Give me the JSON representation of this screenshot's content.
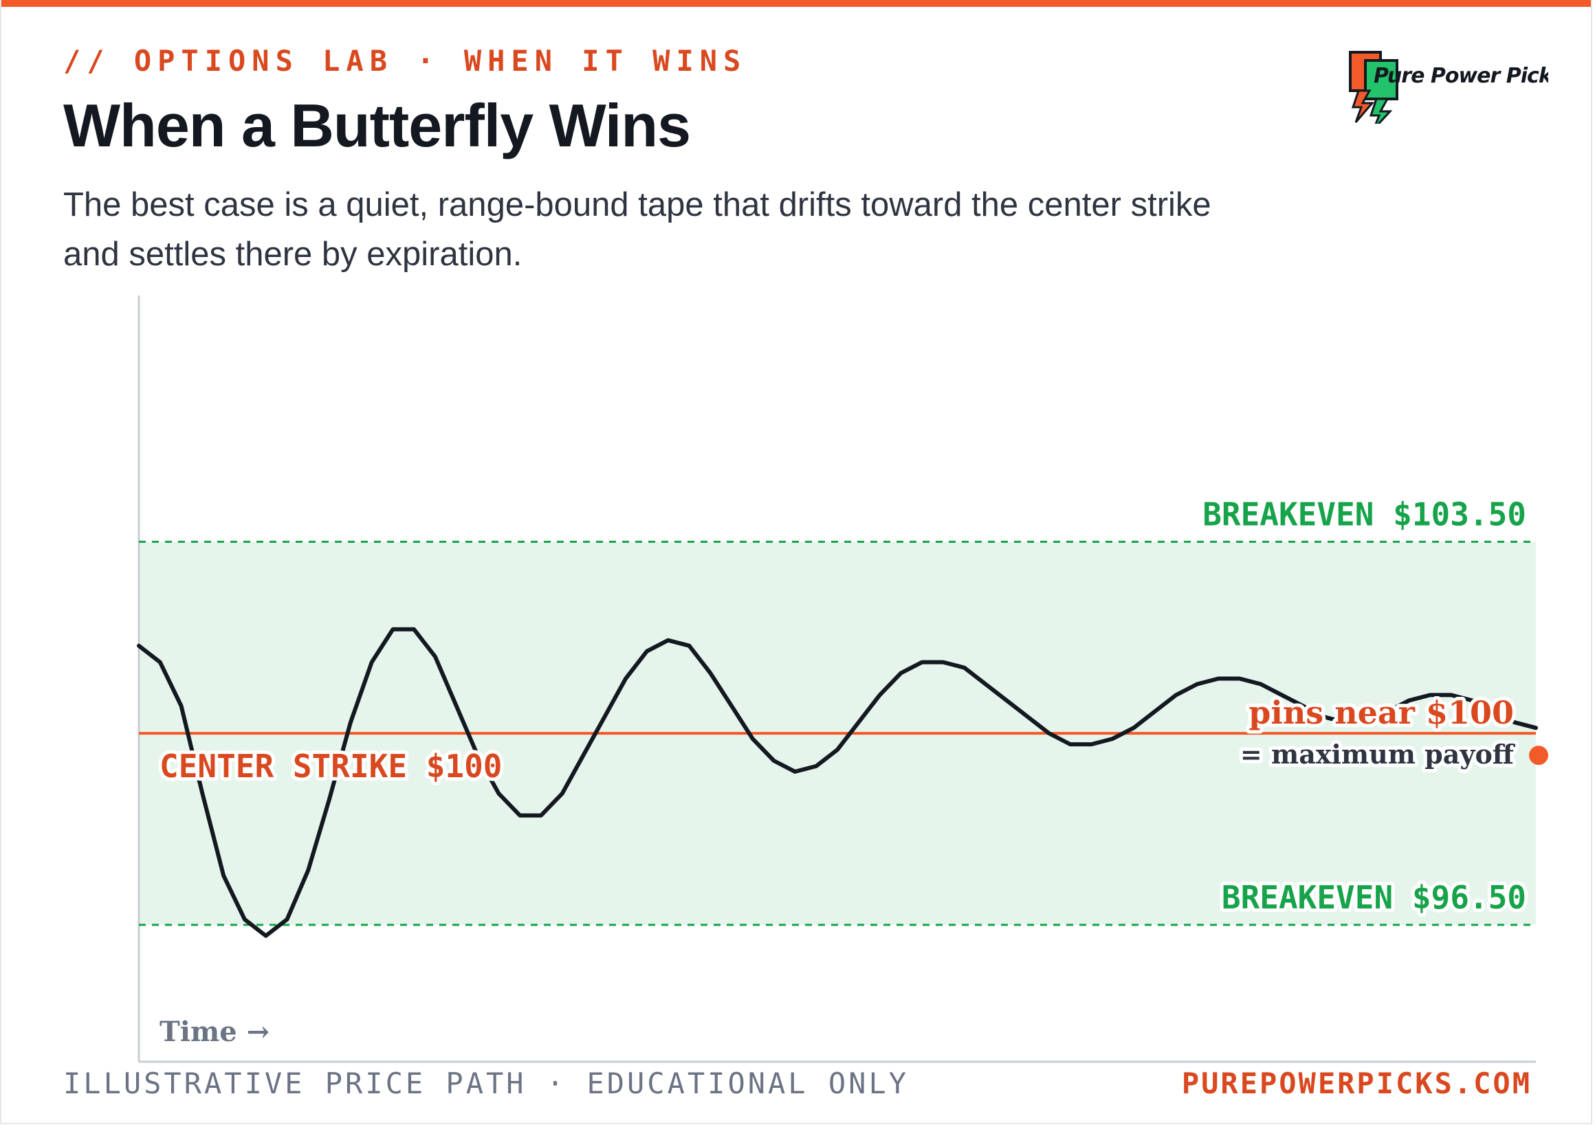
{
  "header": {
    "kicker": "// OPTIONS LAB · WHEN IT WINS",
    "title": "When a Butterfly Wins",
    "subtitle": "The best case is a quiet, range-bound tape that drifts toward the center strike and settles there by expiration."
  },
  "logo": {
    "text": "Pure Power Picks",
    "icon": "lightning-bolt-icon"
  },
  "footer": {
    "left": "ILLUSTRATIVE PRICE PATH · EDUCATIONAL ONLY",
    "right": "PUREPOWERPICKS.COM"
  },
  "colors": {
    "accent": "#f25a2a",
    "accent_text": "#d9481f",
    "green": "#16a34a",
    "band": "#e6f5ec",
    "line": "#141820"
  },
  "chart_data": {
    "type": "line",
    "xlabel": "Time →",
    "ylabel": "",
    "ylim": [
      94.0,
      108.0
    ],
    "grid": false,
    "series": [
      {
        "values": [
          101.6,
          101.3,
          100.5,
          98.9,
          97.4,
          96.6,
          96.3,
          96.6,
          97.5,
          98.8,
          100.2,
          101.3,
          101.9,
          101.9,
          101.4,
          100.5,
          99.6,
          98.9,
          98.5,
          98.5,
          98.9,
          99.6,
          100.3,
          101.0,
          101.5,
          101.7,
          101.6,
          101.1,
          100.5,
          99.9,
          99.5,
          99.3,
          99.4,
          99.7,
          100.2,
          100.7,
          101.1,
          101.3,
          101.3,
          101.2,
          100.9,
          100.6,
          100.3,
          100.0,
          99.8,
          99.8,
          99.9,
          100.1,
          100.4,
          100.7,
          100.9,
          101.0,
          101.0,
          100.9,
          100.7,
          100.5,
          100.3,
          100.2,
          100.3,
          100.4,
          100.6,
          100.7,
          100.7,
          100.6,
          100.4,
          100.2,
          100.1
        ]
      }
    ],
    "reference_lines": [
      {
        "name": "upper-breakeven",
        "value": 103.5,
        "label": "BREAKEVEN $103.50"
      },
      {
        "name": "center-strike",
        "value": 100.0,
        "label": "CENTER STRIKE $100"
      },
      {
        "name": "lower-breakeven",
        "value": 96.5,
        "label": "BREAKEVEN $96.50"
      }
    ],
    "profit_band": [
      96.5,
      103.5
    ],
    "annotations": {
      "pin_label": "pins near $100",
      "payoff_label": "= maximum payoff"
    }
  }
}
